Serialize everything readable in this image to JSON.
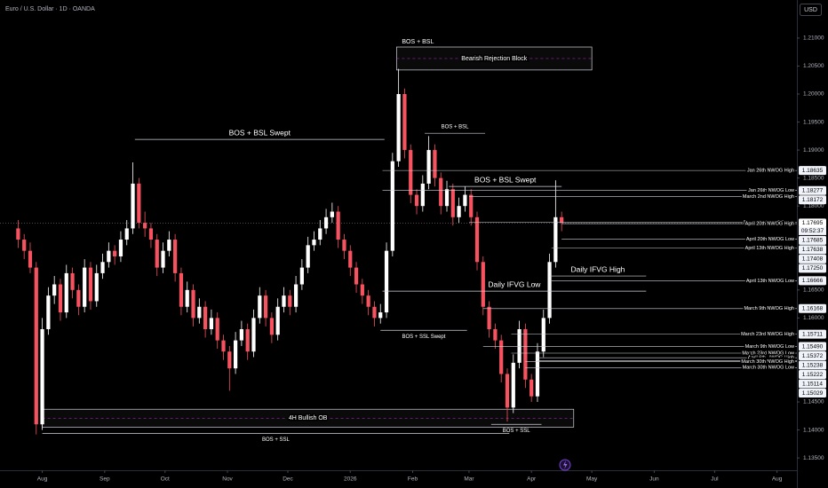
{
  "chart_data": {
    "type": "candlestick",
    "title": "Euro / U.S. Dollar · 1D · OANDA",
    "currency_button": "USD",
    "up_color": "#ffffff",
    "down_color": "#f7525f",
    "x": [
      -12,
      -9,
      -6,
      -3,
      0,
      3,
      6,
      9,
      12,
      15,
      18,
      21,
      24,
      27,
      30,
      33,
      36,
      39,
      42,
      45,
      48,
      51,
      54,
      57,
      60,
      63,
      66,
      69,
      72,
      75,
      78,
      81,
      84,
      87,
      90,
      93,
      96,
      99,
      102,
      105,
      108,
      111,
      114,
      117,
      120,
      123,
      126,
      129,
      132,
      135,
      138,
      141,
      144,
      147,
      150,
      153,
      156,
      159,
      162,
      165,
      168,
      171,
      174,
      177,
      180,
      183,
      186,
      189,
      192,
      195,
      198,
      201,
      204,
      207,
      210,
      213,
      216,
      219,
      222,
      225,
      228,
      231,
      234,
      237,
      240,
      243,
      246,
      249,
      252,
      255,
      258
    ],
    "open": [
      1.176,
      1.174,
      1.172,
      1.169,
      1.141,
      1.158,
      1.164,
      1.166,
      1.161,
      1.168,
      1.165,
      1.162,
      1.169,
      1.163,
      1.168,
      1.17,
      1.172,
      1.171,
      1.174,
      1.176,
      1.184,
      1.177,
      1.176,
      1.174,
      1.169,
      1.172,
      1.174,
      1.168,
      1.162,
      1.165,
      1.16,
      1.162,
      1.158,
      1.16,
      1.156,
      1.154,
      1.151,
      1.156,
      1.158,
      1.154,
      1.16,
      1.164,
      1.16,
      1.157,
      1.162,
      1.164,
      1.162,
      1.166,
      1.169,
      1.173,
      1.174,
      1.176,
      1.178,
      1.179,
      1.174,
      1.172,
      1.169,
      1.166,
      1.164,
      1.162,
      1.16,
      1.161,
      1.172,
      1.188,
      1.2,
      1.19,
      1.182,
      1.18,
      1.184,
      1.19,
      1.185,
      1.18,
      1.183,
      1.178,
      1.18,
      1.182,
      1.178,
      1.17,
      1.162,
      1.158,
      1.156,
      1.15,
      1.144,
      1.152,
      1.158,
      1.149,
      1.146,
      1.154,
      1.16,
      1.17,
      1.178
    ],
    "high": [
      1.1775,
      1.175,
      1.1735,
      1.17,
      1.16,
      1.1655,
      1.1675,
      1.167,
      1.1695,
      1.169,
      1.166,
      1.1705,
      1.17,
      1.1695,
      1.1715,
      1.1735,
      1.173,
      1.1755,
      1.1775,
      1.1878,
      1.185,
      1.179,
      1.177,
      1.175,
      1.1735,
      1.1755,
      1.175,
      1.169,
      1.1665,
      1.166,
      1.1635,
      1.163,
      1.1615,
      1.161,
      1.157,
      1.155,
      1.1575,
      1.1595,
      1.159,
      1.1615,
      1.1655,
      1.165,
      1.161,
      1.1635,
      1.1655,
      1.165,
      1.1675,
      1.1705,
      1.1745,
      1.1755,
      1.1775,
      1.1795,
      1.1806,
      1.18,
      1.175,
      1.173,
      1.17,
      1.167,
      1.165,
      1.163,
      1.1625,
      1.1735,
      1.1895,
      1.2045,
      1.201,
      1.191,
      1.183,
      1.1855,
      1.1925,
      1.191,
      1.186,
      1.1845,
      1.184,
      1.1815,
      1.1835,
      1.183,
      1.179,
      1.171,
      1.163,
      1.159,
      1.157,
      1.151,
      1.1535,
      1.1595,
      1.159,
      1.15,
      1.1555,
      1.1615,
      1.1715,
      1.1846,
      1.179
    ],
    "low": [
      1.1725,
      1.1705,
      1.168,
      1.1392,
      1.14,
      1.157,
      1.1625,
      1.1595,
      1.16,
      1.1635,
      1.1605,
      1.161,
      1.1615,
      1.162,
      1.167,
      1.169,
      1.1695,
      1.17,
      1.173,
      1.175,
      1.176,
      1.1745,
      1.1725,
      1.1675,
      1.168,
      1.171,
      1.1665,
      1.1605,
      1.161,
      1.1585,
      1.159,
      1.1565,
      1.157,
      1.1545,
      1.1525,
      1.147,
      1.15,
      1.155,
      1.1525,
      1.153,
      1.159,
      1.1585,
      1.1555,
      1.156,
      1.161,
      1.1605,
      1.161,
      1.165,
      1.168,
      1.172,
      1.173,
      1.175,
      1.177,
      1.1725,
      1.1705,
      1.1675,
      1.1645,
      1.1625,
      1.1605,
      1.1585,
      1.159,
      1.16,
      1.171,
      1.187,
      1.1885,
      1.1805,
      1.1785,
      1.179,
      1.183,
      1.1835,
      1.1785,
      1.179,
      1.1765,
      1.177,
      1.179,
      1.1765,
      1.1685,
      1.1605,
      1.1565,
      1.1545,
      1.1485,
      1.1415,
      1.143,
      1.151,
      1.1475,
      1.145,
      1.145,
      1.153,
      1.159,
      1.169,
      1.1755
    ],
    "close": [
      1.174,
      1.172,
      1.169,
      1.141,
      1.158,
      1.164,
      1.166,
      1.161,
      1.168,
      1.165,
      1.162,
      1.169,
      1.163,
      1.168,
      1.17,
      1.172,
      1.171,
      1.174,
      1.176,
      1.184,
      1.177,
      1.176,
      1.174,
      1.169,
      1.172,
      1.174,
      1.168,
      1.162,
      1.165,
      1.16,
      1.162,
      1.158,
      1.16,
      1.156,
      1.154,
      1.151,
      1.156,
      1.158,
      1.154,
      1.16,
      1.164,
      1.16,
      1.157,
      1.162,
      1.164,
      1.162,
      1.166,
      1.169,
      1.173,
      1.174,
      1.176,
      1.178,
      1.179,
      1.174,
      1.172,
      1.169,
      1.166,
      1.164,
      1.162,
      1.16,
      1.161,
      1.172,
      1.188,
      1.2,
      1.19,
      1.182,
      1.18,
      1.184,
      1.19,
      1.185,
      1.18,
      1.183,
      1.178,
      1.18,
      1.182,
      1.178,
      1.17,
      1.162,
      1.158,
      1.156,
      1.15,
      1.144,
      1.152,
      1.158,
      1.149,
      1.146,
      1.154,
      1.16,
      1.17,
      1.178,
      1.177
    ],
    "xlim": [
      -21,
      374
    ],
    "xticks": [
      {
        "value": 0,
        "label": "Aug"
      },
      {
        "value": 31,
        "label": "Sep"
      },
      {
        "value": 61,
        "label": "Oct"
      },
      {
        "value": 92,
        "label": "Nov"
      },
      {
        "value": 122,
        "label": "Dec"
      },
      {
        "value": 153,
        "label": "2026"
      },
      {
        "value": 184,
        "label": "Feb"
      },
      {
        "value": 212,
        "label": "Mar"
      },
      {
        "value": 243,
        "label": "Apr"
      },
      {
        "value": 273,
        "label": "May"
      },
      {
        "value": 304,
        "label": "Jun"
      },
      {
        "value": 334,
        "label": "Jul"
      },
      {
        "value": 365,
        "label": "Aug"
      }
    ],
    "ylim": [
      1.1328,
      1.2168
    ],
    "yticks": [
      {
        "value": 1.21,
        "label": "1.21000"
      },
      {
        "value": 1.205,
        "label": "1.20500"
      },
      {
        "value": 1.2,
        "label": "1.20000"
      },
      {
        "value": 1.195,
        "label": "1.19500"
      },
      {
        "value": 1.19,
        "label": "1.19000"
      },
      {
        "value": 1.185,
        "label": "1.18500"
      },
      {
        "value": 1.18,
        "label": "1.18000"
      },
      {
        "value": 1.165,
        "label": "1.16500"
      },
      {
        "value": 1.16,
        "label": "1.16000"
      },
      {
        "value": 1.145,
        "label": "1.14500"
      },
      {
        "value": 1.14,
        "label": "1.14000"
      },
      {
        "value": 1.135,
        "label": "1.13500"
      }
    ],
    "grid": false,
    "current_price": 1.17695,
    "countdown": "09:52:37",
    "price_tags": [
      1.18635,
      1.18277,
      1.18172,
      1.17695,
      1.17685,
      1.17638,
      1.17408,
      {
        "value": 1.1725,
        "label": "1.17250"
      },
      1.16666,
      1.16168,
      1.15711,
      {
        "value": 1.1549,
        "label": "1.15490"
      },
      1.15372,
      1.15238,
      1.15222,
      1.15114,
      1.15029
    ],
    "levels": [
      {
        "text": "Jan 26th NWOG High",
        "price": 1.18635,
        "from": 169
      },
      {
        "text": "Jan 26th NWOG Low",
        "price": 1.18277,
        "from": 169
      },
      {
        "text": "March 2nd NWOG High",
        "price": 1.18172,
        "from": 212
      },
      {
        "text": "March 2nd NWOG Low",
        "price": 1.1771,
        "from": 212
      },
      {
        "text": "April 20th NWOG High",
        "price": 1.17685,
        "from": 258
      },
      {
        "text": "April 20th NWOG Low",
        "price": 1.17408,
        "from": 258
      },
      {
        "text": "April 13th NWOG High",
        "price": 1.1725,
        "from": 253
      },
      {
        "text": "April 13th NWOG Low",
        "price": 1.16666,
        "from": 253
      },
      {
        "text": "March 9th NWOG High",
        "price": 1.16168,
        "from": 219
      },
      {
        "text": "March 23rd NWOG High",
        "price": 1.15711,
        "from": 233
      },
      {
        "text": "March 9th NWOG Low",
        "price": 1.1549,
        "from": 219
      },
      {
        "text": "March 23rd NWOG Low",
        "price": 1.15372,
        "from": 233
      },
      {
        "text": "April 6th NWOG High",
        "price": 1.1529,
        "from": 246
      },
      {
        "text": "April 6th NWOG Low",
        "price": 1.15238,
        "from": 246
      },
      {
        "text": "March 30th NWOG High",
        "price": 1.15222,
        "from": 240
      },
      {
        "text": "March 30th NWOG Low",
        "price": 1.15114,
        "from": 240
      }
    ],
    "annotations": [
      {
        "text": "BOS + BSL Swept",
        "price": 1.1919,
        "from": 46,
        "to": 170,
        "position": "above",
        "size": "large"
      },
      {
        "text": "BOS + BSL",
        "price": 1.193,
        "from": 190,
        "to": 220,
        "position": "above",
        "size": "small"
      },
      {
        "text": "BOS + BSL Swept",
        "price": 1.1835,
        "from": 202,
        "to": 258,
        "position": "above",
        "size": "large"
      },
      {
        "text": "Daily IFVG High",
        "price": 1.1675,
        "from": 252,
        "to": 300,
        "position": "above",
        "size": "large"
      },
      {
        "text": "Daily IFVG Low",
        "price": 1.1648,
        "from": 169,
        "to": 300,
        "position": "above",
        "size": "large"
      },
      {
        "text": "BOS + SSL Swept",
        "price": 1.1578,
        "from": 168,
        "to": 211,
        "position": "below",
        "size": "small"
      },
      {
        "text": "BOS + SSL",
        "price": 1.141,
        "from": 223,
        "to": 248,
        "position": "below",
        "size": "small"
      },
      {
        "text": "BOS + SSL",
        "price": 1.1394,
        "from": 0,
        "to": 232,
        "position": "below",
        "size": "small"
      }
    ],
    "zones": [
      {
        "text": "Bearish Rejection Block",
        "caption": "BOS + BSL",
        "top": 1.2084,
        "bottom": 1.2043,
        "from": 176,
        "to": 273
      },
      {
        "text": "4H Bullish OB",
        "top": 1.1437,
        "bottom": 1.1405,
        "from": 0,
        "to": 264
      }
    ]
  }
}
